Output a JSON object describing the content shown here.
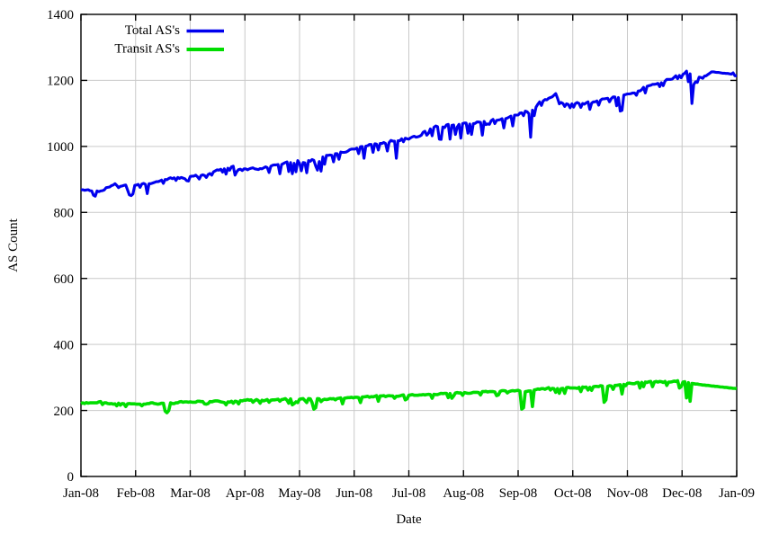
{
  "chart_data": {
    "type": "line",
    "title": "",
    "xlabel": "Date",
    "ylabel": "AS Count",
    "x_tick_labels": [
      "Jan-08",
      "Feb-08",
      "Mar-08",
      "Apr-08",
      "May-08",
      "Jun-08",
      "Jul-08",
      "Aug-08",
      "Sep-08",
      "Oct-08",
      "Nov-08",
      "Dec-08",
      "Jan-09"
    ],
    "y_tick_labels": [
      "0",
      "200",
      "400",
      "600",
      "800",
      "1000",
      "1200",
      "1400"
    ],
    "ylim": [
      0,
      1400
    ],
    "y_tick_step": 200,
    "x_range_days": 366,
    "sampling": "daily",
    "grid": true,
    "legend_position": "top-left-inside",
    "grid_color": "#c9c9c9",
    "border_color": "#000000",
    "background_color": "#ffffff",
    "text_color": "#000000",
    "series": [
      {
        "name": "Total AS's",
        "color": "#0000ee",
        "line_width": 3.1,
        "values": [
          868,
          869,
          867,
          868,
          869,
          866,
          865,
          852,
          849,
          865,
          863,
          865,
          866,
          868,
          875,
          876,
          877,
          881,
          883,
          887,
          882,
          875,
          879,
          880,
          882,
          883,
          868,
          853,
          851,
          856,
          882,
          883,
          885,
          876,
          886,
          888,
          885,
          857,
          887,
          887,
          889,
          891,
          893,
          893,
          895,
          898,
          888,
          900,
          899,
          903,
          905,
          902,
          905,
          897,
          906,
          903,
          906,
          904,
          902,
          896,
          895,
          909,
          910,
          910,
          913,
          908,
          901,
          912,
          914,
          912,
          906,
          915,
          918,
          913,
          923,
          926,
          929,
          928,
          931,
          922,
          932,
          916,
          934,
          928,
          938,
          940,
          913,
          924,
          930,
          931,
          927,
          932,
          932,
          929,
          932,
          934,
          935,
          932,
          931,
          930,
          933,
          932,
          935,
          938,
          936,
          921,
          940,
          943,
          944,
          944,
          945,
          917,
          945,
          948,
          951,
          953,
          924,
          951,
          917,
          949,
          923,
          957,
          949,
          926,
          951,
          950,
          920,
          957,
          955,
          960,
          958,
          941,
          928,
          954,
          925,
          968,
          946,
          973,
          973,
          974,
          973,
          953,
          978,
          978,
          961,
          983,
          982,
          982,
          983,
          986,
          990,
          992,
          992,
          992,
          995,
          978,
          999,
          1000,
          964,
          1001,
          1002,
          1006,
          1006,
          982,
          1008,
          1007,
          989,
          1009,
          1009,
          1012,
          1009,
          986,
          1012,
          1018,
          1016,
          1016,
          964,
          1017,
          1017,
          1023,
          1014,
          1025,
          1023,
          1022,
          1026,
          1029,
          1031,
          1028,
          1029,
          1031,
          1034,
          1043,
          1046,
          1034,
          1040,
          1053,
          1032,
          1058,
          1062,
          1060,
          1022,
          1021,
          1059,
          1057,
          1065,
          1067,
          1022,
          1064,
          1065,
          1036,
          1059,
          1067,
          1025,
          1069,
          1071,
          1071,
          1040,
          1068,
          1036,
          1069,
          1070,
          1074,
          1074,
          1073,
          1034,
          1076,
          1066,
          1068,
          1067,
          1078,
          1082,
          1069,
          1079,
          1080,
          1081,
          1084,
          1056,
          1084,
          1086,
          1089,
          1092,
          1062,
          1095,
          1095,
          1095,
          1101,
          1102,
          1093,
          1107,
          1105,
          1099,
          1028,
          1110,
          1093,
          1119,
          1128,
          1135,
          1124,
          1138,
          1142,
          1141,
          1146,
          1148,
          1150,
          1155,
          1160,
          1146,
          1129,
          1133,
          1130,
          1121,
          1129,
          1127,
          1117,
          1129,
          1119,
          1130,
          1133,
          1130,
          1118,
          1130,
          1128,
          1132,
          1135,
          1112,
          1131,
          1135,
          1135,
          1138,
          1125,
          1140,
          1144,
          1144,
          1145,
          1146,
          1135,
          1145,
          1150,
          1150,
          1123,
          1148,
          1107,
          1109,
          1156,
          1157,
          1159,
          1159,
          1160,
          1162,
          1162,
          1155,
          1168,
          1168,
          1172,
          1179,
          1162,
          1182,
          1184,
          1185,
          1188,
          1188,
          1189,
          1191,
          1181,
          1193,
          1184,
          1198,
          1203,
          1203,
          1203,
          1204,
          1209,
          1214,
          1205,
          1215,
          1208,
          1218,
          1222,
          1228,
          1196,
          1220,
          1130,
          1187,
          1196,
          1194,
          1210,
          1209,
          1206,
          1213,
          1214,
          1218,
          1222,
          1226,
          1226,
          1225,
          1224,
          1224,
          1223,
          1222,
          1222,
          1221,
          1221,
          1220,
          1219,
          1223,
          1214,
          1214
        ]
      },
      {
        "name": "Transit AS's",
        "color": "#00dd00",
        "line_width": 3.6,
        "values": [
          221,
          223,
          221,
          224,
          222,
          223,
          223,
          223,
          223,
          223,
          226,
          227,
          218,
          223,
          223,
          221,
          220,
          221,
          219,
          220,
          214,
          222,
          216,
          221,
          220,
          212,
          220,
          221,
          220,
          220,
          220,
          219,
          219,
          219,
          214,
          219,
          219,
          221,
          221,
          223,
          223,
          221,
          220,
          219,
          220,
          222,
          222,
          198,
          193,
          200,
          223,
          221,
          221,
          223,
          223,
          226,
          227,
          225,
          226,
          226,
          225,
          226,
          225,
          225,
          225,
          228,
          228,
          227,
          227,
          220,
          219,
          221,
          227,
          226,
          228,
          229,
          229,
          228,
          226,
          225,
          224,
          217,
          226,
          225,
          228,
          222,
          228,
          227,
          220,
          230,
          229,
          231,
          231,
          233,
          231,
          232,
          225,
          230,
          233,
          230,
          222,
          231,
          229,
          231,
          233,
          225,
          231,
          232,
          232,
          233,
          234,
          228,
          233,
          234,
          236,
          231,
          222,
          235,
          217,
          221,
          226,
          224,
          234,
          235,
          236,
          230,
          224,
          236,
          235,
          224,
          204,
          208,
          236,
          235,
          227,
          232,
          234,
          233,
          234,
          236,
          235,
          236,
          232,
          236,
          237,
          238,
          220,
          237,
          238,
          239,
          239,
          240,
          238,
          240,
          240,
          239,
          224,
          241,
          241,
          242,
          243,
          240,
          242,
          241,
          243,
          245,
          228,
          244,
          244,
          245,
          242,
          244,
          245,
          244,
          244,
          237,
          243,
          243,
          244,
          246,
          247,
          232,
          235,
          246,
          247,
          248,
          246,
          246,
          246,
          247,
          247,
          248,
          247,
          248,
          249,
          248,
          237,
          249,
          248,
          248,
          250,
          252,
          251,
          252,
          252,
          239,
          251,
          237,
          244,
          253,
          254,
          253,
          253,
          246,
          254,
          253,
          252,
          252,
          253,
          255,
          255,
          255,
          254,
          247,
          257,
          257,
          258,
          256,
          257,
          257,
          257,
          256,
          245,
          247,
          258,
          260,
          260,
          259,
          253,
          257,
          259,
          260,
          259,
          260,
          261,
          259,
          204,
          208,
          257,
          258,
          259,
          259,
          212,
          262,
          263,
          265,
          264,
          266,
          266,
          264,
          267,
          269,
          262,
          267,
          266,
          255,
          266,
          252,
          266,
          267,
          252,
          269,
          270,
          268,
          268,
          268,
          268,
          267,
          270,
          257,
          271,
          270,
          271,
          262,
          270,
          261,
          272,
          273,
          273,
          272,
          275,
          274,
          225,
          232,
          273,
          275,
          274,
          264,
          276,
          276,
          277,
          278,
          250,
          279,
          275,
          282,
          283,
          282,
          281,
          281,
          284,
          285,
          268,
          285,
          272,
          286,
          285,
          287,
          288,
          272,
          286,
          288,
          286,
          288,
          287,
          285,
          288,
          276,
          286,
          286,
          287,
          289,
          288,
          290,
          268,
          272,
          286,
          287,
          238,
          284,
          228,
          282,
          281,
          280,
          280,
          279,
          278,
          277,
          277,
          276,
          276,
          275,
          274,
          274,
          273,
          273,
          272,
          271,
          271,
          270,
          270,
          269,
          268,
          268,
          267,
          267,
          266
        ]
      }
    ]
  },
  "legend": {
    "entries": [
      {
        "label": "Total AS's"
      },
      {
        "label": "Transit AS's"
      }
    ]
  },
  "axes": {
    "y_label": "AS Count",
    "x_label": "Date"
  }
}
